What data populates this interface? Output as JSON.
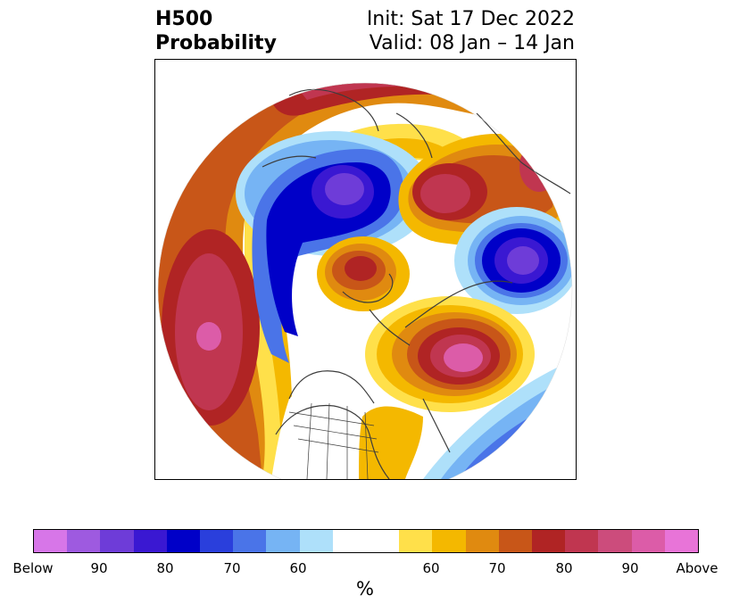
{
  "title": {
    "left_line1": "H500",
    "left_line2": "Probability",
    "right_line1": "Init: Sat 17 Dec 2022",
    "right_line2": "Valid: 08 Jan – 14 Jan"
  },
  "colorbar": {
    "units": "%",
    "colors": [
      "#d776e8",
      "#9e5ae0",
      "#6e3cd8",
      "#3a18d2",
      "#0000c8",
      "#2a3fdc",
      "#4a74e8",
      "#76b4f4",
      "#aee0fa",
      "#ffffff",
      "#ffffff",
      "#ffe04a",
      "#f4b800",
      "#e08a10",
      "#c85618",
      "#b02424",
      "#c03650",
      "#cc4c7c",
      "#dc5ca8",
      "#e874d8"
    ],
    "tick_labels": [
      "Below",
      "90",
      "80",
      "70",
      "60",
      "60",
      "70",
      "80",
      "90",
      "Above"
    ]
  },
  "map": {
    "region": "Northern Hemisphere polar stereographic",
    "anomaly_centers": [
      {
        "name": "north-pacific-above",
        "category": "above",
        "peak": "Above 90"
      },
      {
        "name": "western-atlantic-above",
        "category": "above",
        "peak": "90"
      },
      {
        "name": "arctic-canada-above",
        "category": "above",
        "peak": "80"
      },
      {
        "name": "scandinavia-above",
        "category": "above",
        "peak": "80"
      },
      {
        "name": "east-siberia-below",
        "category": "below",
        "peak": "Below 90"
      },
      {
        "name": "central-siberia-below",
        "category": "below",
        "peak": "Below 90"
      },
      {
        "name": "subtropical-atlantic-below",
        "category": "below",
        "peak": "80"
      }
    ]
  }
}
